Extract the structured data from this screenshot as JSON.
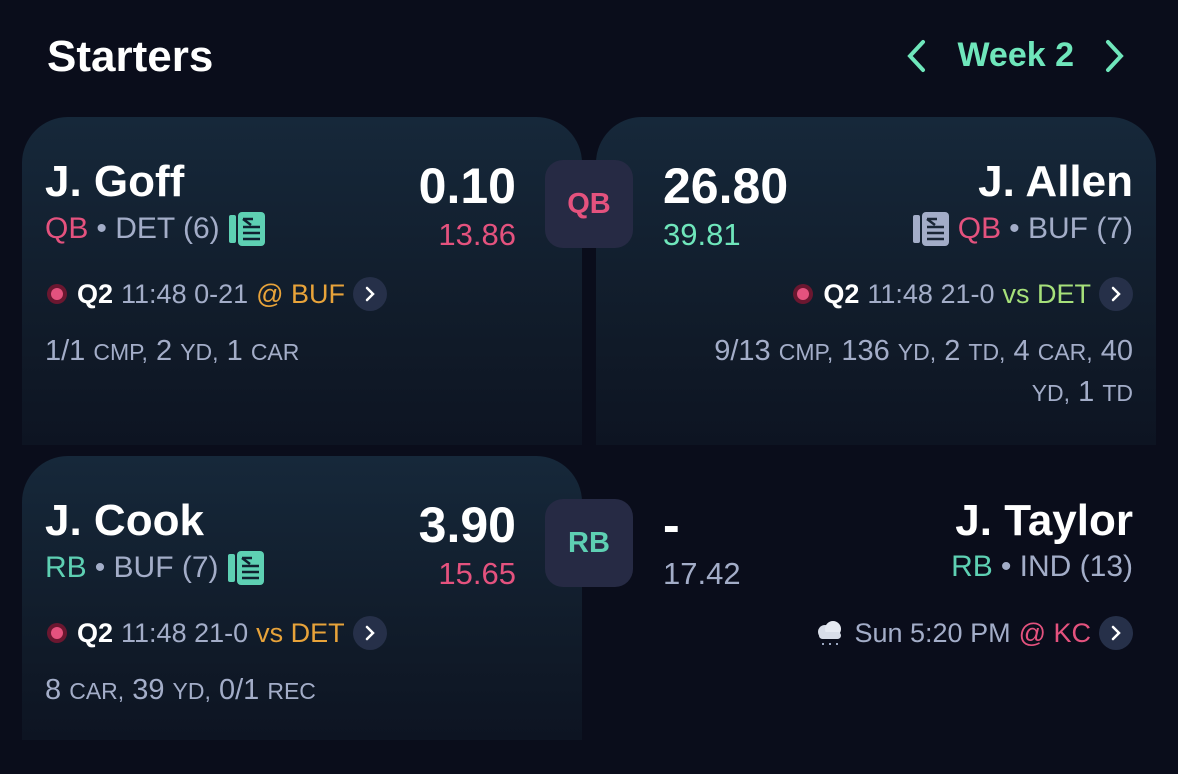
{
  "header": {
    "title": "Starters",
    "week": "Week 2"
  },
  "matchups": [
    {
      "position": "QB",
      "home": {
        "name": "J. Goff",
        "position": "QB",
        "team": "• DET (6)",
        "points": "0.10",
        "projected": "13.86",
        "game": {
          "period": "Q2",
          "status": "11:48 0-21",
          "opponent": "@ BUF"
        },
        "stats": [
          {
            "value": "1/1",
            "unit": "CMP,"
          },
          {
            "value": "2",
            "unit": "YD,"
          },
          {
            "value": "1",
            "unit": "CAR"
          }
        ]
      },
      "away": {
        "name": "J. Allen",
        "position": "QB",
        "team": "• BUF (7)",
        "points": "26.80",
        "projected": "39.81",
        "game": {
          "period": "Q2",
          "status": "11:48 21-0",
          "opponent": "vs DET"
        },
        "stats": [
          {
            "value": "9/13",
            "unit": "CMP,"
          },
          {
            "value": "136",
            "unit": "YD,"
          },
          {
            "value": "2",
            "unit": "TD,"
          },
          {
            "value": "4",
            "unit": "CAR,"
          },
          {
            "value": "40",
            "unit": "YD,"
          },
          {
            "value": "1",
            "unit": "TD"
          }
        ]
      }
    },
    {
      "position": "RB",
      "home": {
        "name": "J. Cook",
        "position": "RB",
        "team": "• BUF (7)",
        "points": "3.90",
        "projected": "15.65",
        "game": {
          "period": "Q2",
          "status": "11:48 21-0",
          "opponent": "vs DET"
        },
        "stats": [
          {
            "value": "8",
            "unit": "CAR,"
          },
          {
            "value": "39",
            "unit": "YD,"
          },
          {
            "value": "0/1",
            "unit": "REC"
          }
        ]
      },
      "away": {
        "name": "J. Taylor",
        "position": "RB",
        "team": "• IND (13)",
        "points": "-",
        "projected": "17.42",
        "game": {
          "time": "Sun 5:20 PM",
          "opponent": "@ KC"
        }
      }
    }
  ]
}
